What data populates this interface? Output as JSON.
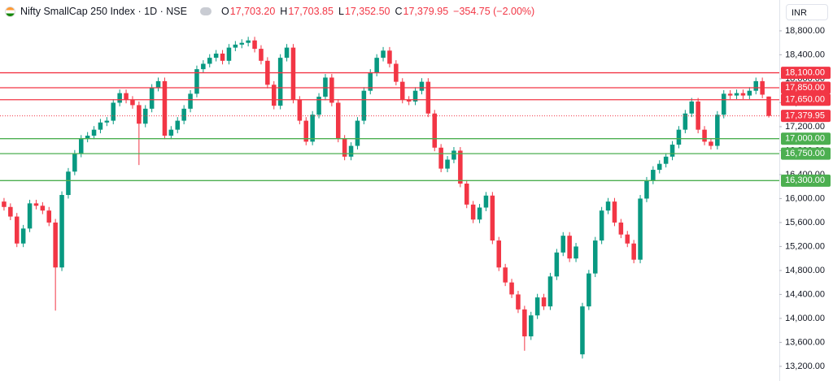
{
  "chart_data": {
    "type": "candlestick",
    "title": "Nifty SmallCap 250 Index · 1D · NSE",
    "ohlc_legend": [
      {
        "key": "O",
        "text": "17,703.20"
      },
      {
        "key": "H",
        "text": "17,703.85"
      },
      {
        "key": "L",
        "text": "17,352.50"
      },
      {
        "key": "C",
        "text": "17,379.95"
      }
    ],
    "change": "−354.75 (−2.00%)",
    "currency": "INR",
    "up_color": "#089981",
    "down_color": "#f23645",
    "ylim": [
      12955,
      18935
    ],
    "yticks": [
      {
        "value": 13200,
        "label": "13,200.00"
      },
      {
        "value": 13600,
        "label": "13,600.00"
      },
      {
        "value": 14000,
        "label": "14,000.00"
      },
      {
        "value": 14400,
        "label": "14,400.00"
      },
      {
        "value": 14800,
        "label": "14,800.00"
      },
      {
        "value": 15200,
        "label": "15,200.00"
      },
      {
        "value": 15600,
        "label": "15,600.00"
      },
      {
        "value": 16000,
        "label": "16,000.00"
      },
      {
        "value": 16400,
        "label": "16,400.00"
      },
      {
        "value": 16800,
        "label": "16,800.00"
      },
      {
        "value": 17200,
        "label": "17,200.00"
      },
      {
        "value": 17600,
        "label": "17,600.00"
      },
      {
        "value": 18000,
        "label": "18,000.00"
      },
      {
        "value": 18400,
        "label": "18,400.00"
      },
      {
        "value": 18800,
        "label": "18,800.00"
      }
    ],
    "grid": false,
    "levels": [
      {
        "value": 18100,
        "label": "18,100.00",
        "color": "#f23645"
      },
      {
        "value": 17850,
        "label": "17,850.00",
        "color": "#f23645"
      },
      {
        "value": 17650,
        "label": "17,650.00",
        "color": "#f23645"
      },
      {
        "value": 17000,
        "label": "17,000.00",
        "color": "#4caf50"
      },
      {
        "value": 16750,
        "label": "16,750.00",
        "color": "#4caf50"
      },
      {
        "value": 16300,
        "label": "16,300.00",
        "color": "#4caf50"
      }
    ],
    "last_price": {
      "value": 17379.95,
      "label": "17,379.95",
      "color": "#f23645"
    },
    "open": [
      15950,
      15860,
      15700,
      15250,
      15500,
      15920,
      15880,
      15800,
      15600,
      14850,
      16060,
      16450,
      16750,
      17000,
      17050,
      17150,
      17270,
      17300,
      17600,
      17760,
      17650,
      17560,
      17250,
      17500,
      17850,
      17960,
      17050,
      17150,
      17300,
      17500,
      17750,
      18160,
      18250,
      18350,
      18420,
      18300,
      18520,
      18570,
      18600,
      18640,
      18500,
      18300,
      17900,
      17550,
      18350,
      18520,
      17650,
      17300,
      16950,
      17400,
      17700,
      18020,
      17600,
      17000,
      16700,
      16880,
      17300,
      17800,
      18100,
      18350,
      18470,
      18250,
      17950,
      17650,
      17620,
      17800,
      17950,
      17420,
      16850,
      16500,
      16650,
      16800,
      16250,
      15900,
      15650,
      15850,
      16050,
      15300,
      14850,
      14600,
      14400,
      14150,
      13700,
      14050,
      14350,
      14200,
      14700,
      15100,
      15380,
      15000,
      13400,
      14200,
      14750,
      15300,
      15800,
      15950,
      15600,
      15400,
      15250,
      14980,
      16000,
      16300,
      16480,
      16580,
      16700,
      16900,
      17150,
      17420,
      17620,
      17150,
      16950,
      16880,
      17400,
      17750,
      17720,
      17760,
      17720,
      17800,
      17960,
      17703.2
    ],
    "high": [
      16010,
      15920,
      15760,
      15560,
      15980,
      15980,
      15940,
      15860,
      15660,
      16120,
      16510,
      16810,
      17060,
      17110,
      17210,
      17330,
      17360,
      17660,
      17820,
      17820,
      17710,
      17620,
      17560,
      17910,
      18020,
      18020,
      17210,
      17360,
      17560,
      17810,
      18220,
      18310,
      18410,
      18480,
      18480,
      18580,
      18630,
      18660,
      18700,
      18700,
      18560,
      18360,
      17960,
      18410,
      18580,
      18580,
      17710,
      17360,
      17460,
      17760,
      18080,
      18080,
      17660,
      17060,
      16940,
      17360,
      17860,
      18160,
      18410,
      18530,
      18530,
      18310,
      18010,
      17710,
      17860,
      18010,
      18010,
      17480,
      16910,
      16710,
      16860,
      16860,
      16310,
      15960,
      15910,
      16110,
      16110,
      15360,
      14910,
      14660,
      14460,
      14210,
      14110,
      14410,
      14410,
      14760,
      15160,
      15440,
      15440,
      15260,
      14260,
      14810,
      15360,
      15860,
      16010,
      16010,
      15660,
      15460,
      15310,
      16060,
      16360,
      16540,
      16640,
      16760,
      16960,
      17210,
      17480,
      17680,
      17680,
      17210,
      17010,
      17460,
      17810,
      17810,
      17820,
      17820,
      17860,
      18020,
      18020,
      17703.85
    ],
    "low": [
      15800,
      15640,
      15190,
      15190,
      15440,
      15820,
      15740,
      15540,
      14130,
      14790,
      16000,
      16390,
      16690,
      16940,
      16990,
      17090,
      17210,
      17240,
      17540,
      17590,
      17500,
      16560,
      17190,
      17440,
      17790,
      16990,
      16990,
      17090,
      17240,
      17440,
      17690,
      18100,
      18190,
      18290,
      18240,
      18240,
      18460,
      18510,
      18540,
      18440,
      18240,
      17840,
      17490,
      17490,
      18290,
      17590,
      17240,
      16890,
      16890,
      17340,
      17640,
      17540,
      16940,
      16640,
      16640,
      16820,
      17240,
      17740,
      18040,
      18290,
      18190,
      17890,
      17590,
      17560,
      17560,
      17740,
      17360,
      16790,
      16440,
      16440,
      16590,
      16190,
      15840,
      15590,
      15590,
      15790,
      15240,
      14790,
      14540,
      14340,
      14090,
      13460,
      13640,
      13990,
      14140,
      14140,
      14640,
      15040,
      14940,
      14940,
      13330,
      14140,
      14690,
      15240,
      15740,
      15540,
      15340,
      15190,
      14920,
      14920,
      15940,
      16240,
      16420,
      16520,
      16640,
      16840,
      17090,
      17360,
      17090,
      16890,
      16820,
      16820,
      17340,
      17660,
      17660,
      17660,
      17660,
      17740,
      17674.7,
      17352.5
    ],
    "close": [
      15860,
      15700,
      15250,
      15500,
      15920,
      15880,
      15800,
      15600,
      14850,
      16060,
      16450,
      16750,
      17000,
      17050,
      17150,
      17270,
      17300,
      17600,
      17760,
      17650,
      17560,
      17250,
      17500,
      17850,
      17960,
      17050,
      17150,
      17300,
      17500,
      17750,
      18160,
      18250,
      18350,
      18420,
      18300,
      18520,
      18570,
      18600,
      18640,
      18500,
      18300,
      17900,
      17550,
      18350,
      18520,
      17650,
      17300,
      16950,
      17400,
      17700,
      18020,
      17600,
      17000,
      16700,
      16880,
      17300,
      17800,
      18100,
      18350,
      18470,
      18250,
      17950,
      17650,
      17620,
      17800,
      17950,
      17420,
      16850,
      16500,
      16650,
      16800,
      16250,
      15900,
      15650,
      15850,
      16050,
      15300,
      14850,
      14600,
      14400,
      14150,
      13700,
      14050,
      14350,
      14200,
      14700,
      15100,
      15380,
      15000,
      15200,
      14200,
      14750,
      15300,
      15800,
      15950,
      15600,
      15400,
      15250,
      14980,
      16000,
      16300,
      16480,
      16580,
      16700,
      16900,
      17150,
      17420,
      17620,
      17150,
      16950,
      16880,
      17400,
      17750,
      17720,
      17760,
      17720,
      17800,
      17960,
      17734.7,
      17379.95
    ]
  }
}
